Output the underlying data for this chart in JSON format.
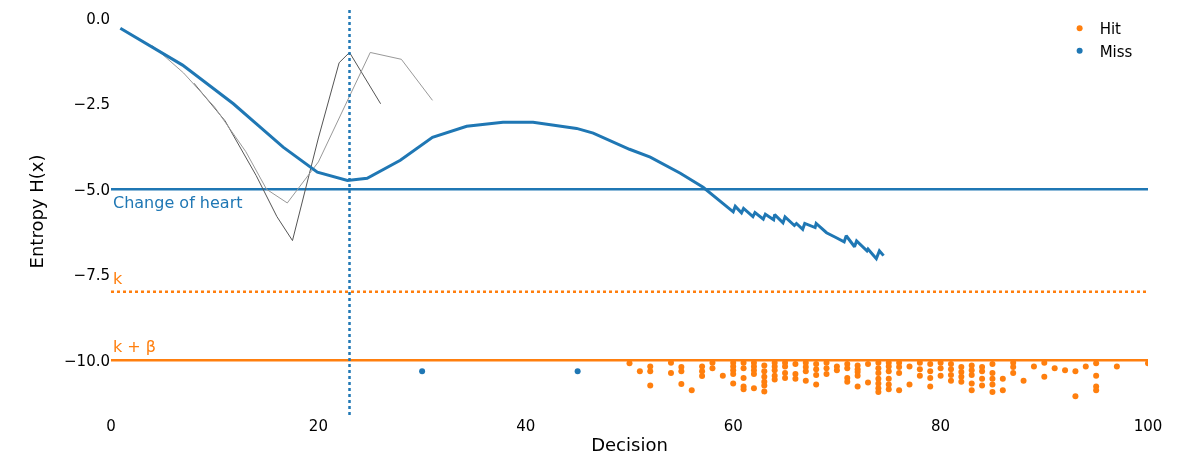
{
  "chart_data": {
    "type": "line",
    "xlabel": "Decision",
    "ylabel": "Entropy H(x)",
    "xlim": [
      0,
      100
    ],
    "xticks": [
      0,
      20,
      40,
      60,
      80,
      100
    ],
    "ylim": [
      -11.6,
      0.3
    ],
    "yticks": [
      {
        "value": 0,
        "label": "0.0"
      },
      {
        "value": -2.5,
        "label": "−2.5"
      },
      {
        "value": -5,
        "label": "−5.0"
      },
      {
        "value": -7.5,
        "label": "−7.5"
      },
      {
        "value": -10,
        "label": "−10.0"
      }
    ],
    "grid": false,
    "legend": "top right",
    "marker": "none",
    "line_style": "solid",
    "series": [
      {
        "color": "#555555",
        "x": [
          8,
          11,
          14,
          16,
          17.5,
          20,
          22,
          23,
          26
        ],
        "values": [
          -1.9,
          -3.0,
          -4.6,
          -5.8,
          -6.5,
          -3.5,
          -1.3,
          -1.0,
          -2.5
        ]
      },
      {
        "color": "#999999",
        "x": [
          4,
          7,
          10,
          13,
          15,
          17,
          20,
          25,
          28,
          31
        ],
        "values": [
          -0.8,
          -1.6,
          -2.6,
          -3.9,
          -5.0,
          -5.4,
          -4.2,
          -1.0,
          -1.2,
          -2.4
        ]
      },
      {
        "color": "#1f77b4",
        "x": [
          0.9,
          6.9,
          11.8,
          16.6,
          19.9,
          22.8,
          24.7,
          27.9,
          31,
          34.3,
          37.8,
          40.7,
          44.9,
          46.5,
          50,
          52,
          54.9,
          57.1,
          60.0,
          60.2,
          60.8,
          61.0,
          61.9,
          62.1,
          62.9,
          63.1,
          63.9,
          64.0,
          64.8,
          65.0,
          65.9,
          66.1,
          66.7,
          66.9,
          67.9,
          68.0,
          69.0,
          69.9,
          70.7,
          70.9,
          71.7,
          71.9,
          72.9,
          73.0,
          73.8,
          74.1,
          74.5
        ],
        "values": [
          -0.29,
          -1.37,
          -2.5,
          -3.77,
          -4.5,
          -4.74,
          -4.68,
          -4.15,
          -3.48,
          -3.16,
          -3.04,
          -3.04,
          -3.22,
          -3.36,
          -3.83,
          -4.06,
          -4.53,
          -4.94,
          -5.66,
          -5.5,
          -5.69,
          -5.56,
          -5.8,
          -5.68,
          -5.87,
          -5.73,
          -5.89,
          -5.74,
          -5.98,
          -5.81,
          -6.06,
          -6.0,
          -6.17,
          -6.0,
          -6.12,
          -6.0,
          -6.27,
          -6.41,
          -6.54,
          -6.36,
          -6.68,
          -6.51,
          -6.8,
          -6.75,
          -7.03,
          -6.8,
          -6.94
        ]
      },
      {
        "name": "Hit",
        "type": "scatter",
        "marker": "circle",
        "color": "#ff7f0e",
        "x": [
          50,
          51,
          52,
          52,
          52,
          54,
          54,
          55,
          55,
          55,
          56,
          57,
          57,
          57,
          58,
          58,
          59,
          60,
          60,
          60,
          60,
          60,
          61,
          61,
          61,
          61,
          61,
          62,
          62,
          62,
          62,
          62,
          63,
          63,
          63,
          63,
          63,
          63,
          64,
          64,
          64,
          64,
          64,
          65,
          65,
          65,
          65,
          66,
          66,
          66,
          67,
          67,
          67,
          67,
          68,
          68,
          68,
          68,
          69,
          69,
          69,
          70,
          70,
          71,
          71,
          71,
          71,
          72,
          72,
          72,
          72,
          72,
          73,
          73,
          74,
          74,
          74,
          74,
          74,
          74,
          74,
          75,
          75,
          75,
          75,
          75,
          75,
          76,
          76,
          76,
          76,
          77,
          77,
          78,
          78,
          78,
          79,
          79,
          79,
          79,
          80,
          80,
          80,
          81,
          81,
          81,
          81,
          82,
          82,
          82,
          82,
          83,
          83,
          83,
          83,
          83,
          84,
          84,
          84,
          84,
          85,
          85,
          85,
          85,
          85,
          86,
          86,
          87,
          87,
          87,
          88,
          89,
          90,
          90,
          91,
          92,
          93,
          93,
          94,
          95,
          95,
          95,
          95,
          97,
          100
        ],
        "values": [
          -10.09,
          -10.32,
          -10.18,
          -10.32,
          -10.74,
          -10.07,
          -10.37,
          -10.2,
          -10.32,
          -10.69,
          -10.88,
          -10.18,
          -10.32,
          -10.46,
          -10.07,
          -10.23,
          -10.45,
          -10.07,
          -10.18,
          -10.29,
          -10.4,
          -10.68,
          -10.07,
          -10.23,
          -10.52,
          -10.77,
          -10.85,
          -10.07,
          -10.18,
          -10.29,
          -10.4,
          -10.82,
          -10.15,
          -10.32,
          -10.48,
          -10.63,
          -10.74,
          -10.91,
          -10.07,
          -10.18,
          -10.29,
          -10.45,
          -10.56,
          -10.07,
          -10.18,
          -10.37,
          -10.52,
          -10.11,
          -10.4,
          -10.54,
          -10.07,
          -10.2,
          -10.32,
          -10.6,
          -10.11,
          -10.26,
          -10.43,
          -10.71,
          -10.07,
          -10.23,
          -10.4,
          -10.18,
          -10.29,
          -10.11,
          -10.23,
          -10.52,
          -10.63,
          -10.15,
          -10.26,
          -10.34,
          -10.45,
          -10.77,
          -10.11,
          -10.65,
          -10.07,
          -10.23,
          -10.37,
          -10.54,
          -10.68,
          -10.82,
          -10.93,
          -10.07,
          -10.18,
          -10.32,
          -10.54,
          -10.71,
          -10.85,
          -10.07,
          -10.2,
          -10.37,
          -10.88,
          -10.18,
          -10.71,
          -10.07,
          -10.26,
          -10.45,
          -10.11,
          -10.32,
          -10.52,
          -10.77,
          -10.07,
          -10.23,
          -10.45,
          -10.11,
          -10.26,
          -10.43,
          -10.6,
          -10.2,
          -10.34,
          -10.48,
          -10.63,
          -10.15,
          -10.29,
          -10.43,
          -10.68,
          -10.88,
          -10.2,
          -10.32,
          -10.54,
          -10.74,
          -10.11,
          -10.37,
          -10.54,
          -10.71,
          -10.93,
          -10.54,
          -10.88,
          -10.07,
          -10.2,
          -10.37,
          -10.6,
          -10.18,
          -10.07,
          -10.48,
          -10.23,
          -10.29,
          -10.32,
          -11.05,
          -10.18,
          -10.09,
          -10.45,
          -10.77,
          -10.88,
          -10.18,
          -10.09
        ]
      },
      {
        "name": "Miss",
        "type": "scatter",
        "marker": "circle",
        "color": "#1f77b4",
        "x": [
          30,
          45
        ],
        "values": [
          -10.32,
          -10.32
        ]
      }
    ],
    "ref_lines": [
      {
        "axis": "x",
        "value": 23,
        "color": "#1f77b4",
        "line_style": "dotted"
      },
      {
        "axis": "y",
        "value": -5,
        "label": "Change of heart",
        "color": "#1f77b4",
        "line_style": "solid"
      },
      {
        "axis": "y",
        "value": -8,
        "label": "k",
        "color": "#ff7f0e",
        "line_style": "dotted"
      },
      {
        "axis": "y",
        "value": -10,
        "label": "k + β",
        "color": "#ff7f0e",
        "line_style": "solid"
      }
    ]
  }
}
